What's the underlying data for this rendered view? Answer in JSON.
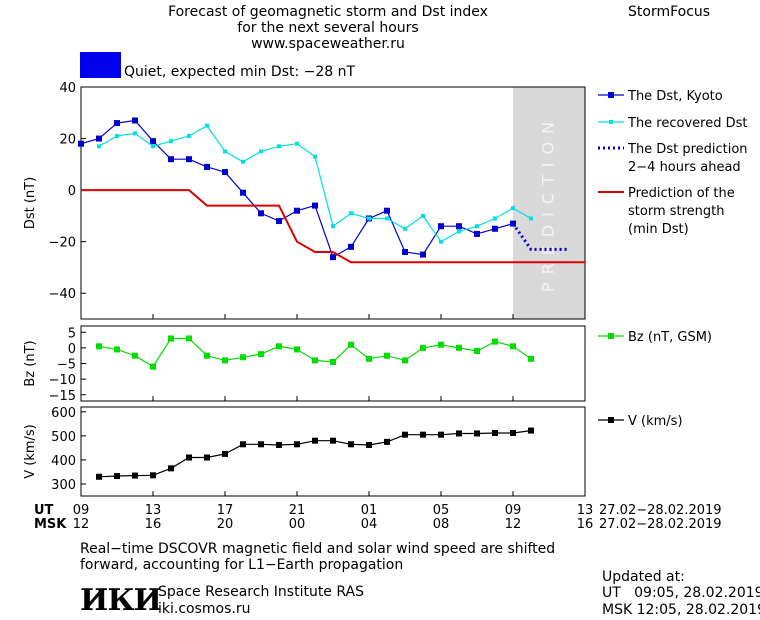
{
  "header": {
    "title_lines": [
      "Forecast of geomagnetic storm and Dst index",
      "for the next several hours",
      "www.spaceweather.ru"
    ],
    "brand": "StormFocus",
    "status_color": "#0000ee",
    "status_text": "Quiet, expected min Dst: −28 nT"
  },
  "footer": {
    "note_lines": [
      "Real−time DSCOVR magnetic field and solar wind speed are shifted",
      "forward, accounting for L1−Earth propagation"
    ],
    "logo_text": "ИКИ",
    "institute": "Space Research Institute RAS",
    "site": "iki.cosmos.ru",
    "updated_label": "Updated at:",
    "updated_ut": "UT   09:05, 28.02.2019",
    "updated_msk": "MSK 12:05, 28.02.2019"
  },
  "chart_data": {
    "type": "line",
    "x_unit": "hours since 09 UT 27.02.2019",
    "time_axis": {
      "ut_label": "UT",
      "msk_label": "MSK",
      "ticks": [
        0,
        4,
        8,
        12,
        16,
        20,
        24,
        28
      ],
      "ut_ticks": [
        "09",
        "13",
        "17",
        "21",
        "01",
        "05",
        "09",
        "13"
      ],
      "msk_ticks": [
        "12",
        "16",
        "20",
        "00",
        "04",
        "08",
        "12",
        "16"
      ],
      "date_range": "27.02−28.02.2019",
      "xlim": [
        0,
        28
      ]
    },
    "prediction_label": "PREDICTION",
    "prediction_region": [
      24,
      28
    ],
    "panels": [
      {
        "id": "dst",
        "ylabel": "Dst (nT)",
        "ylim": [
          -50,
          40
        ],
        "yticks": [
          40,
          20,
          0,
          -20,
          -40
        ],
        "series": [
          {
            "name": "The Dst, Kyoto",
            "color": "#0000cc",
            "style": "line-square",
            "x": [
              0,
              1,
              2,
              3,
              4,
              5,
              6,
              7,
              8,
              9,
              10,
              11,
              12,
              13,
              14,
              15,
              16,
              17,
              18,
              19,
              20,
              21,
              22,
              23,
              24
            ],
            "y": [
              18,
              20,
              26,
              27,
              19,
              12,
              12,
              9,
              7,
              -1,
              -9,
              -12,
              -8,
              -6,
              -26,
              -22,
              -11,
              -8,
              -24,
              -25,
              -14,
              -14,
              -17,
              -15,
              -13
            ]
          },
          {
            "name": "The recovered Dst",
            "color": "#00e0e0",
            "style": "line-square-small",
            "x": [
              1,
              2,
              3,
              4,
              5,
              6,
              7,
              8,
              9,
              10,
              11,
              12,
              13,
              14,
              15,
              16,
              17,
              18,
              19,
              20,
              21,
              22,
              23,
              24,
              25
            ],
            "y": [
              17,
              21,
              22,
              17,
              19,
              21,
              25,
              15,
              11,
              15,
              17,
              18,
              13,
              -14,
              -9,
              -11,
              -11,
              -15,
              -10,
              -20,
              -16,
              -14,
              -11,
              -7,
              -11
            ]
          },
          {
            "name_lines": [
              "The Dst prediction",
              "2−4 hours ahead"
            ],
            "color": "#0000cc",
            "style": "dotted",
            "x": [
              24,
              25,
              26,
              27
            ],
            "y": [
              -13,
              -23,
              -23,
              -23
            ]
          },
          {
            "name_lines": [
              "Prediction of the",
              "storm strength",
              "(min Dst)"
            ],
            "color": "#dd0000",
            "style": "line",
            "x": [
              0,
              6,
              7,
              11,
              12,
              13,
              14,
              15,
              28
            ],
            "y": [
              0,
              0,
              -6,
              -6,
              -20,
              -24,
              -24,
              -28,
              -28
            ]
          }
        ]
      },
      {
        "id": "bz",
        "ylabel": "Bz (nT)",
        "ylim": [
          -17,
          7
        ],
        "yticks": [
          5,
          0,
          -5,
          -10,
          -15
        ],
        "series": [
          {
            "name": "Bz (nT, GSM)",
            "color": "#00dd00",
            "style": "line-square",
            "x": [
              1,
              2,
              3,
              4,
              5,
              6,
              7,
              8,
              9,
              10,
              11,
              12,
              13,
              14,
              15,
              16,
              17,
              18,
              19,
              20,
              21,
              22,
              23,
              24,
              25
            ],
            "y": [
              0.5,
              -0.5,
              -2.5,
              -6,
              3,
              3,
              -2.5,
              -4,
              -3,
              -2,
              0.5,
              -0.5,
              -4,
              -4.5,
              1,
              -3.5,
              -2.5,
              -4,
              0,
              1,
              0,
              -1,
              2,
              0.5,
              -3.5
            ]
          }
        ]
      },
      {
        "id": "v",
        "ylabel": "V (km/s)",
        "ylim": [
          250,
          620
        ],
        "yticks": [
          600,
          500,
          400,
          300
        ],
        "series": [
          {
            "name": "V (km/s)",
            "color": "#000000",
            "style": "line-square",
            "x": [
              1,
              2,
              3,
              4,
              5,
              6,
              7,
              8,
              9,
              10,
              11,
              12,
              13,
              14,
              15,
              16,
              17,
              18,
              19,
              20,
              21,
              22,
              23,
              24,
              25
            ],
            "y": [
              330,
              333,
              335,
              336,
              365,
              410,
              410,
              425,
              465,
              465,
              462,
              465,
              480,
              480,
              465,
              462,
              475,
              505,
              505,
              505,
              510,
              510,
              512,
              512,
              522
            ]
          }
        ]
      }
    ]
  }
}
